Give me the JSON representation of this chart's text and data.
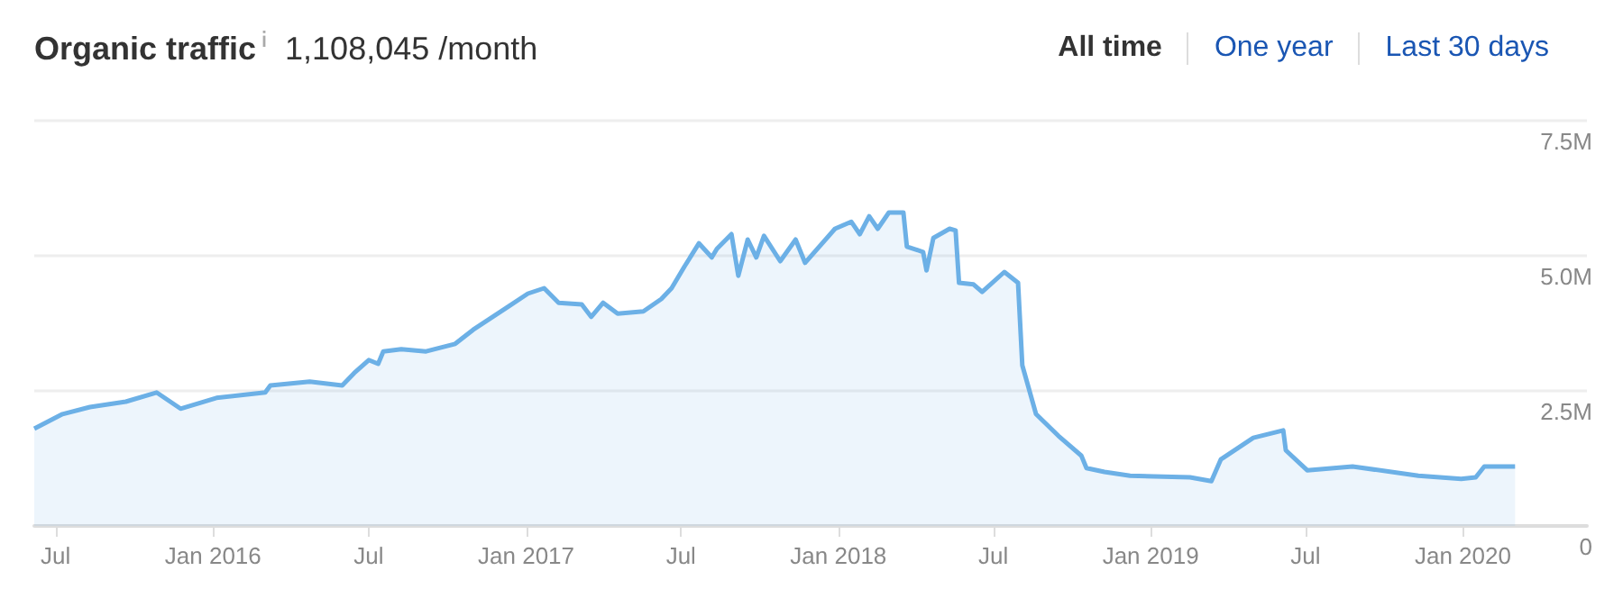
{
  "chart_data": {
    "type": "area",
    "title": "Organic traffic",
    "subtitle": "1,108,045 /month",
    "annotations": [
      "All time",
      "One year",
      "Last 30 days"
    ],
    "x": [
      "2015-06-06",
      "2015-07-09",
      "2015-08-10",
      "2015-09-21",
      "2015-10-27",
      "2015-11-24",
      "2016-01-05",
      "2016-03-02",
      "2016-03-08",
      "2016-04-23",
      "2016-05-31",
      "2016-06-14",
      "2016-07-01",
      "2016-07-12",
      "2016-07-18",
      "2016-08-08",
      "2016-09-06",
      "2016-10-10",
      "2016-10-31",
      "2016-12-12",
      "2017-01-03",
      "2017-01-22",
      "2017-02-08",
      "2017-03-07",
      "2017-03-18",
      "2017-04-01",
      "2017-04-18",
      "2017-05-18",
      "2017-06-08",
      "2017-06-20",
      "2017-07-05",
      "2017-07-22",
      "2017-08-06",
      "2017-08-12",
      "2017-08-29",
      "2017-09-06",
      "2017-09-17",
      "2017-09-27",
      "2017-10-06",
      "2017-10-25",
      "2017-11-12",
      "2017-11-23",
      "2017-12-28",
      "2018-01-16",
      "2018-01-26",
      "2018-02-06",
      "2018-02-16",
      "2018-03-01",
      "2018-03-18",
      "2018-03-22",
      "2018-04-10",
      "2018-04-14",
      "2018-04-22",
      "2018-05-11",
      "2018-05-18",
      "2018-05-22",
      "2018-06-08",
      "2018-06-18",
      "2018-07-14",
      "2018-07-30",
      "2018-08-04",
      "2018-08-20",
      "2018-09-15",
      "2018-10-12",
      "2018-10-18",
      "2018-11-08",
      "2018-12-08",
      "2019-02-16",
      "2019-03-13",
      "2019-03-24",
      "2019-05-01",
      "2019-06-05",
      "2019-06-08",
      "2019-07-03",
      "2019-08-25",
      "2019-11-10",
      "2019-12-30",
      "2020-01-16",
      "2020-01-26",
      "2020-03-02"
    ],
    "series": [
      {
        "color": "#6cb0e6",
        "values": [
          1.8,
          2.07,
          2.2,
          2.3,
          2.47,
          2.17,
          2.37,
          2.47,
          2.6,
          2.67,
          2.6,
          2.83,
          3.07,
          3.0,
          3.23,
          3.27,
          3.23,
          3.37,
          3.63,
          4.07,
          4.3,
          4.4,
          4.13,
          4.1,
          3.87,
          4.13,
          3.93,
          3.97,
          4.2,
          4.4,
          4.8,
          5.23,
          4.97,
          5.13,
          5.4,
          4.63,
          5.3,
          4.97,
          5.37,
          4.9,
          5.3,
          4.87,
          5.5,
          5.63,
          5.4,
          5.73,
          5.5,
          5.8,
          5.8,
          5.17,
          5.07,
          4.73,
          5.33,
          5.5,
          5.47,
          4.5,
          4.47,
          4.33,
          4.7,
          4.5,
          2.97,
          2.07,
          1.67,
          1.3,
          1.07,
          1.0,
          0.93,
          0.9,
          0.83,
          1.23,
          1.63,
          1.77,
          1.4,
          1.03,
          1.1,
          0.93,
          0.87,
          0.9,
          1.1,
          1.1
        ]
      }
    ],
    "xlim": [
      "2015-06-06",
      "2020-05-25"
    ],
    "xticks": [
      {
        "value": "2015-07-01",
        "label": "Jul"
      },
      {
        "value": "2016-01-01",
        "label": "Jan 2016"
      },
      {
        "value": "2016-07-01",
        "label": "Jul"
      },
      {
        "value": "2017-01-01",
        "label": "Jan 2017"
      },
      {
        "value": "2017-07-01",
        "label": "Jul"
      },
      {
        "value": "2018-01-01",
        "label": "Jan 2018"
      },
      {
        "value": "2018-07-01",
        "label": "Jul"
      },
      {
        "value": "2019-01-01",
        "label": "Jan 2019"
      },
      {
        "value": "2019-07-01",
        "label": "Jul"
      },
      {
        "value": "2020-01-01",
        "label": "Jan 2020"
      }
    ],
    "ylim": [
      0,
      7.5
    ],
    "yticks": [
      0,
      {
        "value": 2.5,
        "label": "2.5M"
      },
      {
        "value": 5,
        "label": "5.0M"
      },
      {
        "value": 7.5,
        "label": "7.5M"
      }
    ],
    "grid": "y",
    "marker": "none"
  }
}
